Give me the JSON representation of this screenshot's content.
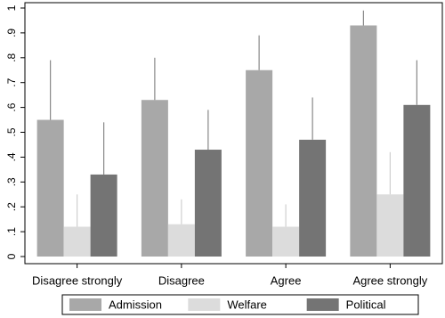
{
  "chart_data": {
    "type": "bar",
    "categories": [
      "Disagree strongly",
      "Disagree",
      "Agree",
      "Agree strongly"
    ],
    "series": [
      {
        "name": "Admission",
        "color": "#a8a8a8",
        "values": [
          0.55,
          0.63,
          0.75,
          0.93
        ],
        "errors": [
          0.24,
          0.17,
          0.14,
          0.06
        ]
      },
      {
        "name": "Welfare",
        "color": "#dcdcdc",
        "values": [
          0.12,
          0.13,
          0.12,
          0.25
        ],
        "errors": [
          0.13,
          0.1,
          0.09,
          0.17
        ]
      },
      {
        "name": "Political",
        "color": "#747474",
        "values": [
          0.33,
          0.43,
          0.47,
          0.61
        ],
        "errors": [
          0.21,
          0.16,
          0.17,
          0.18
        ]
      }
    ],
    "ylim": [
      0,
      1
    ],
    "yticks": [
      0,
      {
        "value": 0.1,
        "label": ".1"
      },
      {
        "value": 0.2,
        "label": ".2"
      },
      {
        "value": 0.3,
        "label": ".3"
      },
      {
        "value": 0.4,
        "label": ".4"
      },
      {
        "value": 0.5,
        "label": ".5"
      },
      {
        "value": 0.6,
        "label": ".6"
      },
      {
        "value": 0.7,
        "label": ".7"
      },
      {
        "value": 0.8,
        "label": ".8"
      },
      {
        "value": 0.9,
        "label": ".9"
      },
      1
    ],
    "grid": false,
    "legend": "bottom"
  }
}
